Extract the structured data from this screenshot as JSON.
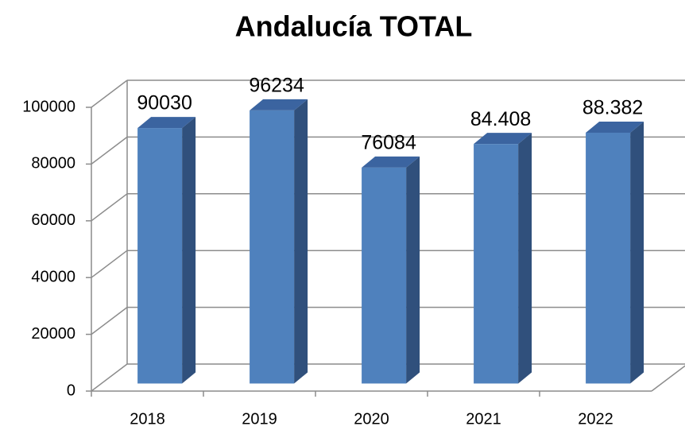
{
  "chart_data": {
    "type": "bar3d",
    "title": "Andalucía TOTAL",
    "categories": [
      "2018",
      "2019",
      "2020",
      "2021",
      "2022"
    ],
    "values": [
      90030,
      96234,
      76084,
      84408,
      88382
    ],
    "value_labels": [
      "90030",
      "96234",
      "76084",
      "84.408",
      "88.382"
    ],
    "color": "#4f81bd",
    "ylim": [
      0,
      100000
    ],
    "yticks": [
      0,
      20000,
      40000,
      60000,
      80000,
      100000
    ],
    "grid": true
  }
}
